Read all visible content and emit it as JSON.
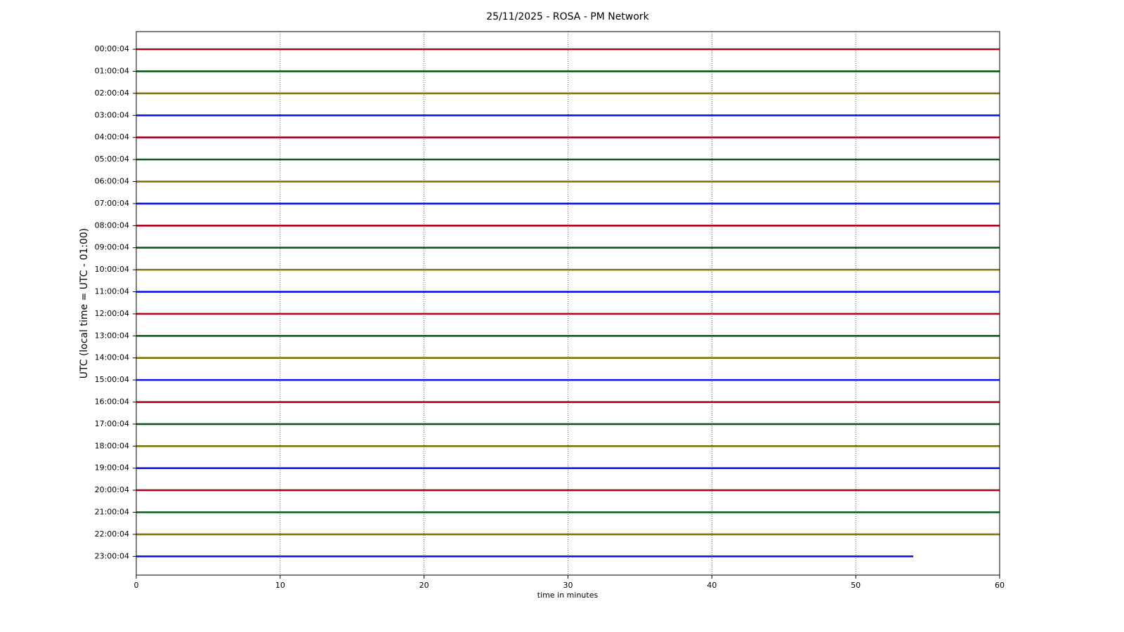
{
  "chart_data": {
    "type": "helicorder",
    "title": "25/11/2025 - ROSA - PM Network",
    "xlabel": "time in minutes",
    "ylabel": "UTC (local time = UTC - 01:00)",
    "xlim": [
      0,
      60
    ],
    "xticks": [
      0,
      10,
      20,
      30,
      40,
      50,
      60
    ],
    "grid": true,
    "categories": [
      "00:00:04",
      "01:00:04",
      "02:00:04",
      "03:00:04",
      "04:00:04",
      "05:00:04",
      "06:00:04",
      "07:00:04",
      "08:00:04",
      "09:00:04",
      "10:00:04",
      "11:00:04",
      "12:00:04",
      "13:00:04",
      "14:00:04",
      "15:00:04",
      "16:00:04",
      "17:00:04",
      "18:00:04",
      "19:00:04",
      "20:00:04",
      "21:00:04",
      "22:00:04",
      "23:00:04"
    ],
    "values": [
      60,
      60,
      60,
      60,
      60,
      60,
      60,
      60,
      60,
      60,
      60,
      60,
      60,
      60,
      60,
      60,
      60,
      60,
      60,
      60,
      60,
      60,
      60,
      54
    ],
    "colors": [
      "#b0001e",
      "#0b5a1c",
      "#80730a",
      "#0a14f0"
    ]
  }
}
